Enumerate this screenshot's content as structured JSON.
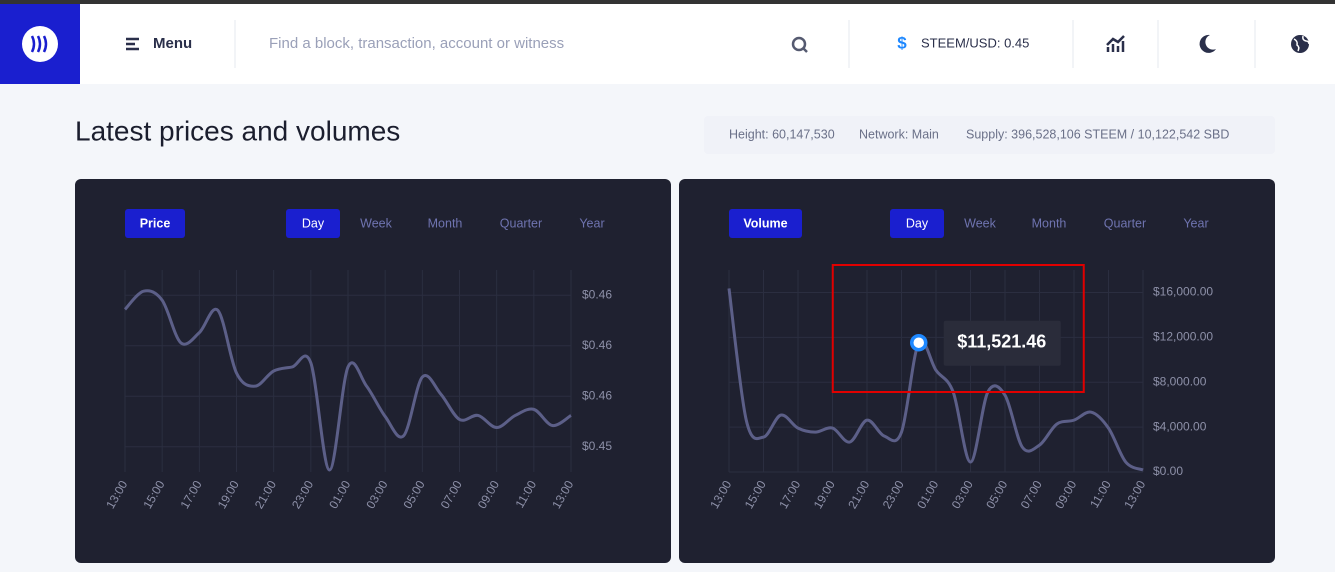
{
  "header": {
    "menu": "Menu",
    "search_placeholder": "Find a block, transaction, account or witness",
    "price": "STEEM/USD: 0.45"
  },
  "page": {
    "title": "Latest prices and volumes",
    "stats": [
      "Height: 60,147,530",
      "Network: Main",
      "Supply: 396,528,106 STEEM / 10,122,542 SBD"
    ]
  },
  "chart_data": [
    {
      "type": "line",
      "title": "Price",
      "periods": [
        "Day",
        "Week",
        "Month",
        "Quarter",
        "Year"
      ],
      "categories": [
        "13:00",
        null,
        "15:00",
        null,
        "17:00",
        null,
        "19:00",
        null,
        "21:00",
        null,
        "23:00",
        null,
        "01:00",
        null,
        "03:00",
        null,
        "05:00",
        null,
        "07:00",
        null,
        "09:00",
        null,
        "11:00",
        null,
        "13:00"
      ],
      "values": [
        0.45722,
        0.45758,
        0.4574,
        0.45656,
        0.45676,
        0.4572,
        0.45596,
        0.4557,
        0.456,
        0.45608,
        0.45616,
        0.45404,
        0.45608,
        0.4557,
        0.4551,
        0.45472,
        0.45588,
        0.45554,
        0.45504,
        0.45512,
        0.45488,
        0.45512,
        0.45524,
        0.45492,
        0.45512
      ],
      "color": "#5c5f88",
      "ylim": [
        0.454,
        0.458
      ],
      "yticks": [
        {
          "value": 0.4575,
          "label": "$0.46"
        },
        {
          "value": 0.4565,
          "label": "$0.46"
        },
        {
          "value": 0.4555,
          "label": "$0.46"
        },
        {
          "value": 0.4545,
          "label": "$0.45"
        }
      ],
      "grid": true
    },
    {
      "type": "line",
      "title": "Volume",
      "periods": [
        "Day",
        "Week",
        "Month",
        "Quarter",
        "Year"
      ],
      "categories": [
        "13:00",
        null,
        "15:00",
        null,
        "17:00",
        null,
        "19:00",
        null,
        "21:00",
        null,
        "23:00",
        null,
        "01:00",
        null,
        "03:00",
        null,
        "05:00",
        null,
        "07:00",
        null,
        "09:00",
        null,
        "11:00",
        null,
        "13:00"
      ],
      "values": [
        16356,
        4622,
        3111,
        5067,
        3911,
        3556,
        3911,
        2667,
        4622,
        3200,
        3556,
        11521.46,
        9067,
        7111,
        889,
        7111,
        6844,
        2222,
        2400,
        4267,
        4622,
        5333,
        3911,
        889,
        178
      ],
      "value_labels": [
        null,
        null,
        null,
        null,
        null,
        null,
        null,
        null,
        null,
        null,
        null,
        "$11,521.46",
        null,
        null,
        null,
        null,
        null,
        null,
        null,
        null,
        null,
        null,
        null,
        null,
        null
      ],
      "color": "#5c5f88",
      "ylim": [
        0,
        18000
      ],
      "yticks": [
        {
          "value": 16000,
          "label": "$16,000.00"
        },
        {
          "value": 12000,
          "label": "$12,000.00"
        },
        {
          "value": 8000,
          "label": "$8,000.00"
        },
        {
          "value": 4000,
          "label": "$4,000.00"
        },
        {
          "value": 0,
          "label": "$0.00"
        }
      ],
      "grid": true
    }
  ]
}
